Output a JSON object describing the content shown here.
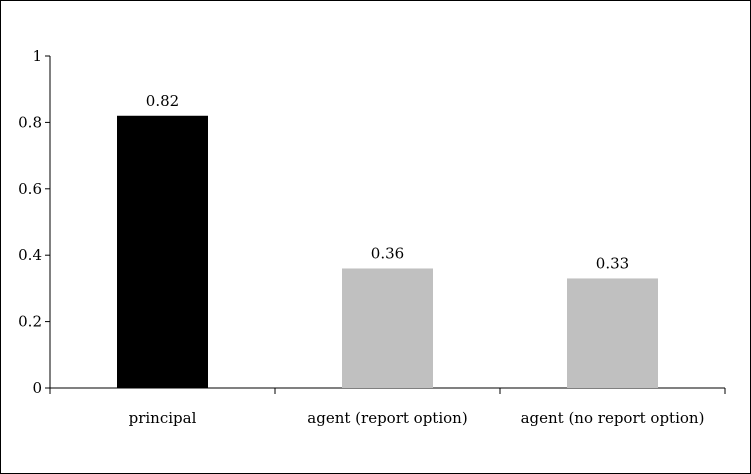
{
  "chart_data": {
    "type": "bar",
    "title": "",
    "xlabel": "",
    "ylabel": "",
    "categories": [
      "principal",
      "agent (report option)",
      "agent (no report option)"
    ],
    "values": [
      0.82,
      0.36,
      0.33
    ],
    "value_labels": [
      "0.82",
      "0.36",
      "0.33"
    ],
    "colors": [
      "#000000",
      "#c0c0c0",
      "#c0c0c0"
    ],
    "ylim": [
      0,
      1
    ],
    "yticks": [
      0,
      0.2,
      0.4,
      0.6,
      0.8,
      1
    ],
    "ytick_labels": [
      "0",
      "0.2",
      "0.4",
      "0.6",
      "0.8",
      "1"
    ],
    "grid": false,
    "legend": "none"
  }
}
